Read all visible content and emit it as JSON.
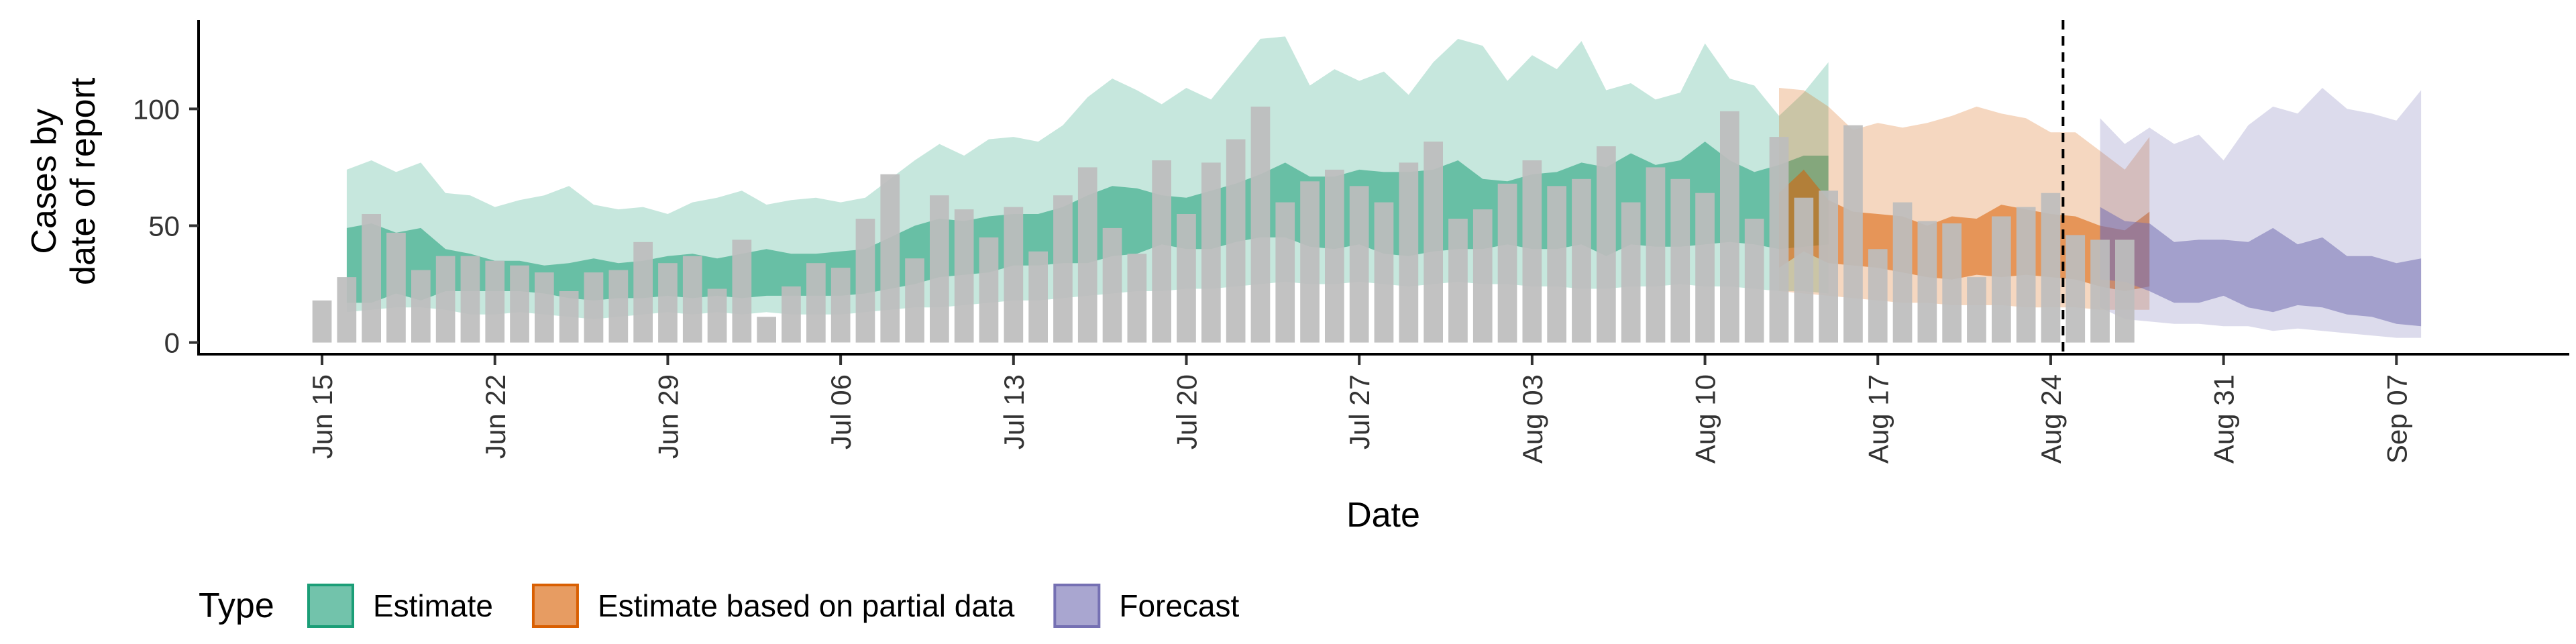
{
  "chart_data": {
    "type": "bar+area",
    "x_type": "date",
    "x_range": [
      "2021-06-10",
      "2021-09-14"
    ],
    "xlabel": "Date",
    "ylabel": "Cases by\ndate of report",
    "ylim": [
      -5,
      138
    ],
    "yticks": [
      0,
      50,
      100
    ],
    "xticks": [
      {
        "date": "2021-06-15",
        "label": "Jun 15"
      },
      {
        "date": "2021-06-22",
        "label": "Jun 22"
      },
      {
        "date": "2021-06-29",
        "label": "Jun 29"
      },
      {
        "date": "2021-07-06",
        "label": "Jul 06"
      },
      {
        "date": "2021-07-13",
        "label": "Jul 13"
      },
      {
        "date": "2021-07-20",
        "label": "Jul 20"
      },
      {
        "date": "2021-07-27",
        "label": "Jul 27"
      },
      {
        "date": "2021-08-03",
        "label": "Aug 03"
      },
      {
        "date": "2021-08-10",
        "label": "Aug 10"
      },
      {
        "date": "2021-08-17",
        "label": "Aug 17"
      },
      {
        "date": "2021-08-24",
        "label": "Aug 24"
      },
      {
        "date": "2021-08-31",
        "label": "Aug 31"
      },
      {
        "date": "2021-09-07",
        "label": "Sep 07"
      }
    ],
    "grid": false,
    "vline_date": "2021-08-25",
    "bars": {
      "start_date": "2021-06-15",
      "color": "#bdbdbd",
      "values": [
        18,
        28,
        55,
        47,
        31,
        37,
        37,
        35,
        33,
        30,
        22,
        30,
        31,
        43,
        34,
        37,
        23,
        44,
        11,
        24,
        34,
        32,
        53,
        72,
        36,
        63,
        57,
        45,
        58,
        39,
        63,
        75,
        49,
        38,
        78,
        55,
        77,
        87,
        101,
        60,
        69,
        74,
        67,
        60,
        77,
        86,
        53,
        57,
        68,
        78,
        67,
        70,
        84,
        60,
        75,
        70,
        64,
        99,
        53,
        88,
        62,
        65,
        93,
        40,
        60,
        52,
        51,
        28,
        54,
        58,
        64,
        46,
        44,
        44
      ],
      "cases_per_day_note": "observed reported cases"
    },
    "series": [
      {
        "name": "Estimate",
        "color": "#1b9e77",
        "fill": "#66c2a5",
        "start_date": "2021-06-16",
        "lower_90": [
          13,
          14,
          15,
          15,
          14,
          12,
          12,
          13,
          12,
          11,
          10,
          11,
          12,
          13,
          12,
          13,
          12,
          13,
          12,
          12,
          12,
          13,
          14,
          15,
          15,
          16,
          17,
          18,
          18,
          19,
          20,
          21,
          22,
          22,
          23,
          23,
          24,
          25,
          26,
          25,
          25,
          26,
          25,
          24,
          25,
          26,
          25,
          25,
          24,
          24,
          23,
          23,
          24,
          24,
          25,
          24,
          24,
          23,
          22,
          22,
          21
        ],
        "lower_50": [
          17,
          17,
          21,
          18,
          22,
          22,
          22,
          22,
          21,
          19,
          18,
          19,
          19,
          20,
          19,
          20,
          19,
          20,
          20,
          20,
          20,
          21,
          23,
          25,
          28,
          29,
          30,
          33,
          33,
          34,
          34,
          37,
          38,
          42,
          40,
          40,
          43,
          45,
          45,
          41,
          40,
          42,
          38,
          37,
          39,
          40,
          40,
          42,
          40,
          40,
          42,
          37,
          42,
          41,
          41,
          42,
          43,
          42,
          40,
          41,
          42
        ],
        "upper_50": [
          49,
          51,
          47,
          49,
          40,
          38,
          35,
          35,
          33,
          34,
          36,
          34,
          35,
          37,
          38,
          36,
          38,
          40,
          38,
          38,
          39,
          40,
          45,
          50,
          53,
          52,
          54,
          55,
          55,
          58,
          63,
          67,
          66,
          63,
          62,
          65,
          68,
          72,
          77,
          71,
          71,
          74,
          73,
          73,
          74,
          78,
          70,
          69,
          72,
          73,
          77,
          75,
          81,
          76,
          78,
          86,
          78,
          73,
          76,
          80,
          80
        ],
        "upper_90": [
          74,
          78,
          73,
          77,
          64,
          63,
          58,
          61,
          63,
          67,
          59,
          57,
          58,
          55,
          60,
          62,
          65,
          59,
          61,
          62,
          60,
          62,
          70,
          78,
          85,
          80,
          87,
          88,
          86,
          93,
          105,
          113,
          108,
          102,
          109,
          104,
          117,
          130,
          131,
          110,
          117,
          112,
          116,
          106,
          120,
          130,
          127,
          112,
          123,
          117,
          129,
          108,
          111,
          104,
          107,
          128,
          113,
          110,
          97,
          107,
          120
        ]
      },
      {
        "name": "Estimate based on partial data",
        "color": "#d95f02",
        "fill": "#fc8d62",
        "start_date": "2021-08-13",
        "lower_90": [
          22,
          21,
          20,
          19,
          18,
          17,
          17,
          16,
          16,
          16,
          15,
          15,
          15,
          14,
          14,
          14
        ],
        "lower_50": [
          32,
          39,
          34,
          33,
          32,
          30,
          28,
          27,
          29,
          28,
          29,
          28,
          27,
          24,
          22,
          24
        ],
        "upper_50": [
          64,
          74,
          61,
          56,
          55,
          54,
          50,
          54,
          53,
          59,
          57,
          55,
          54,
          50,
          48,
          56
        ],
        "upper_90": [
          109,
          108,
          101,
          91,
          94,
          92,
          94,
          97,
          101,
          98,
          96,
          90,
          90,
          82,
          74,
          88
        ]
      },
      {
        "name": "Forecast",
        "color": "#7570b3",
        "fill": "#8da0cb",
        "start_date": "2021-08-26",
        "lower_90": [
          15,
          10,
          9,
          8,
          8,
          7,
          7,
          5,
          6,
          5,
          4,
          3,
          2,
          2
        ],
        "lower_50": [
          27,
          26,
          22,
          17,
          17,
          20,
          15,
          13,
          16,
          15,
          12,
          11,
          8,
          7
        ],
        "upper_50": [
          58,
          52,
          51,
          43,
          44,
          44,
          43,
          49,
          42,
          45,
          37,
          37,
          34,
          36
        ],
        "upper_90": [
          96,
          85,
          92,
          85,
          89,
          78,
          93,
          101,
          98,
          109,
          100,
          98,
          95,
          108
        ]
      }
    ],
    "legend": {
      "title": "Type",
      "position": "bottom",
      "entries": [
        "Estimate",
        "Estimate based on partial data",
        "Forecast"
      ]
    }
  }
}
